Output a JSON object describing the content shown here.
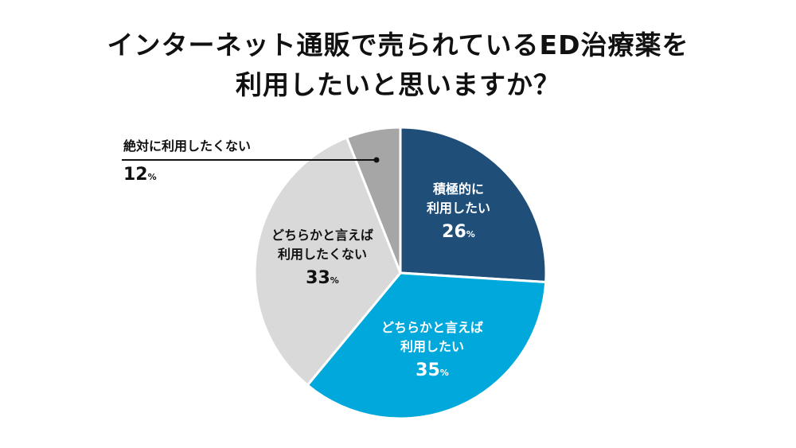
{
  "title": {
    "line1": "インターネット通販で売られているED治療薬を",
    "line2": "利用したいと思いますか？"
  },
  "chart_data": {
    "type": "pie",
    "title": "インターネット通販で売られているED治療薬を利用したいと思いますか？",
    "start": "12 o'clock, clockwise",
    "slices": [
      {
        "label_line1": "積極的に",
        "label_line2": "利用したい",
        "value": 26,
        "unit": "%",
        "color": "#1f4e79"
      },
      {
        "label_line1": "どちらかと言えば",
        "label_line2": "利用したい",
        "value": 35,
        "unit": "%",
        "color": "#00a8dc"
      },
      {
        "label_line1": "どちらかと言えば",
        "label_line2": "利用したくない",
        "value": 33,
        "unit": "%",
        "color": "#d9d9d9"
      },
      {
        "label_line1": "絶対に利用したくない",
        "label_line2": "",
        "value": 12,
        "unit": "%",
        "color": "#a6a6a6"
      }
    ]
  }
}
